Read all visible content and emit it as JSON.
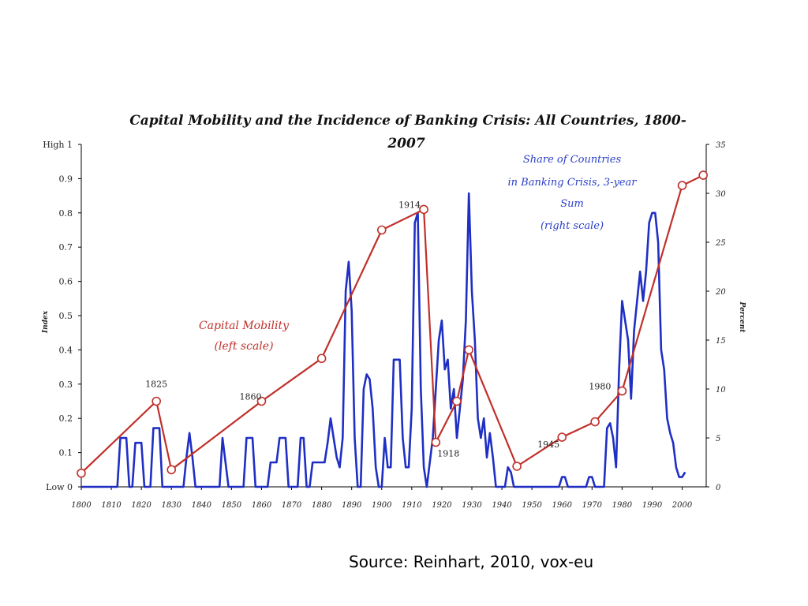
{
  "source": "Source: Reinhart, 2010, vox-eu",
  "chart_data": {
    "type": "line",
    "title_lines": [
      "Capital Mobility and the Incidence of Banking Crisis: All Countries, 1800-",
      "2007"
    ],
    "left_axis": {
      "label": "Index",
      "range": [
        0,
        1
      ],
      "ticks": [
        {
          "v": 0,
          "t": "Low 0"
        },
        {
          "v": 0.1,
          "t": "0.1"
        },
        {
          "v": 0.2,
          "t": "0.2"
        },
        {
          "v": 0.3,
          "t": "0.3"
        },
        {
          "v": 0.4,
          "t": "0.4"
        },
        {
          "v": 0.5,
          "t": "0.5"
        },
        {
          "v": 0.6,
          "t": "0.6"
        },
        {
          "v": 0.7,
          "t": "0.7"
        },
        {
          "v": 0.8,
          "t": "0.8"
        },
        {
          "v": 0.9,
          "t": "0.9"
        },
        {
          "v": 1,
          "t": "High 1"
        }
      ]
    },
    "right_axis": {
      "label": "Percent",
      "range": [
        0,
        35
      ],
      "ticks": [
        "0",
        "5",
        "10",
        "15",
        "20",
        "25",
        "30",
        "35"
      ]
    },
    "x_axis": {
      "range": [
        1800,
        2008
      ],
      "ticks": [
        {
          "v": 1800,
          "t": "1800"
        },
        {
          "v": 1810,
          "t": "1810"
        },
        {
          "v": 1820,
          "t": "1820"
        },
        {
          "v": 1830,
          "t": "1830"
        },
        {
          "v": 1840,
          "t": "1840"
        },
        {
          "v": 1850,
          "t": "1850"
        },
        {
          "v": 1860,
          "t": "1860"
        },
        {
          "v": 1870,
          "t": "1870"
        },
        {
          "v": 1880,
          "t": "1880"
        },
        {
          "v": 1890,
          "t": "1890"
        },
        {
          "v": 1900,
          "t": "1900"
        },
        {
          "v": 1910,
          "t": "1910"
        },
        {
          "v": 1920,
          "t": "1920"
        },
        {
          "v": 1930,
          "t": "1930"
        },
        {
          "v": 1940,
          "t": "1940"
        },
        {
          "v": 1950,
          "t": "1950"
        },
        {
          "v": 1960,
          "t": "1960"
        },
        {
          "v": 1970,
          "t": "1970"
        },
        {
          "v": 1980,
          "t": "1980"
        },
        {
          "v": 1990,
          "t": "1990"
        },
        {
          "v": 2000,
          "t": "2000"
        }
      ]
    },
    "series": [
      {
        "name": "Capital Mobility",
        "axis": "left",
        "color": "#c0302a",
        "marker": "circle",
        "points": [
          [
            1800,
            0.04
          ],
          [
            1825,
            0.25
          ],
          [
            1830,
            0.05
          ],
          [
            1860,
            0.25
          ],
          [
            1880,
            0.375
          ],
          [
            1900,
            0.75
          ],
          [
            1914,
            0.81
          ],
          [
            1918,
            0.13
          ],
          [
            1925,
            0.25
          ],
          [
            1929,
            0.4
          ],
          [
            1945,
            0.06
          ],
          [
            1960,
            0.145
          ],
          [
            1971,
            0.19
          ],
          [
            1980,
            0.28
          ],
          [
            2000,
            0.88
          ],
          [
            2007,
            0.91
          ]
        ]
      },
      {
        "name": "Share of Countries in Banking Crisis, 3-year Sum",
        "axis": "right",
        "color": "#1f2fc4",
        "points": [
          [
            1800,
            0
          ],
          [
            1812,
            0
          ],
          [
            1813,
            5
          ],
          [
            1815,
            5
          ],
          [
            1816,
            0
          ],
          [
            1817,
            0
          ],
          [
            1818,
            4.5
          ],
          [
            1820,
            4.5
          ],
          [
            1821,
            0
          ],
          [
            1823,
            0
          ],
          [
            1824,
            6
          ],
          [
            1826,
            6
          ],
          [
            1827,
            0
          ],
          [
            1834,
            0
          ],
          [
            1835,
            3
          ],
          [
            1836,
            5.5
          ],
          [
            1837,
            3
          ],
          [
            1838,
            0
          ],
          [
            1846,
            0
          ],
          [
            1847,
            5
          ],
          [
            1849,
            0
          ],
          [
            1854,
            0
          ],
          [
            1855,
            5
          ],
          [
            1857,
            5
          ],
          [
            1858,
            0
          ],
          [
            1862,
            0
          ],
          [
            1863,
            2.5
          ],
          [
            1865,
            2.5
          ],
          [
            1866,
            5
          ],
          [
            1868,
            5
          ],
          [
            1869,
            0
          ],
          [
            1872,
            0
          ],
          [
            1873,
            5
          ],
          [
            1874,
            5
          ],
          [
            1875,
            0
          ],
          [
            1876,
            0
          ],
          [
            1877,
            2.5
          ],
          [
            1881,
            2.5
          ],
          [
            1882,
            4.5
          ],
          [
            1883,
            7
          ],
          [
            1884,
            5
          ],
          [
            1885,
            3
          ],
          [
            1886,
            2
          ],
          [
            1887,
            5
          ],
          [
            1888,
            20
          ],
          [
            1889,
            23
          ],
          [
            1890,
            18
          ],
          [
            1891,
            5
          ],
          [
            1892,
            0
          ],
          [
            1893,
            0
          ],
          [
            1894,
            10
          ],
          [
            1895,
            11.5
          ],
          [
            1896,
            11
          ],
          [
            1897,
            8
          ],
          [
            1898,
            2
          ],
          [
            1899,
            0
          ],
          [
            1900,
            0
          ],
          [
            1901,
            5
          ],
          [
            1902,
            2
          ],
          [
            1903,
            2
          ],
          [
            1904,
            13
          ],
          [
            1906,
            13
          ],
          [
            1907,
            5
          ],
          [
            1908,
            2
          ],
          [
            1909,
            2
          ],
          [
            1910,
            8
          ],
          [
            1911,
            27
          ],
          [
            1912,
            28
          ],
          [
            1913,
            10
          ],
          [
            1914,
            2
          ],
          [
            1915,
            0
          ],
          [
            1917,
            5
          ],
          [
            1918,
            10
          ],
          [
            1919,
            15
          ],
          [
            1920,
            17
          ],
          [
            1921,
            12
          ],
          [
            1922,
            13
          ],
          [
            1923,
            8
          ],
          [
            1924,
            10
          ],
          [
            1925,
            5
          ],
          [
            1926,
            8
          ],
          [
            1927,
            11
          ],
          [
            1928,
            17
          ],
          [
            1929,
            30
          ],
          [
            1930,
            20
          ],
          [
            1931,
            15
          ],
          [
            1932,
            7
          ],
          [
            1933,
            5
          ],
          [
            1934,
            7
          ],
          [
            1935,
            3
          ],
          [
            1936,
            5.5
          ],
          [
            1937,
            3
          ],
          [
            1938,
            0
          ],
          [
            1941,
            0
          ],
          [
            1942,
            2
          ],
          [
            1943,
            1.5
          ],
          [
            1944,
            0
          ],
          [
            1959,
            0
          ],
          [
            1960,
            1
          ],
          [
            1961,
            1
          ],
          [
            1962,
            0
          ],
          [
            1968,
            0
          ],
          [
            1969,
            1
          ],
          [
            1970,
            1
          ],
          [
            1971,
            0
          ],
          [
            1974,
            0
          ],
          [
            1975,
            6
          ],
          [
            1976,
            6.5
          ],
          [
            1977,
            5
          ],
          [
            1978,
            2
          ],
          [
            1979,
            12
          ],
          [
            1980,
            19
          ],
          [
            1981,
            17
          ],
          [
            1982,
            15
          ],
          [
            1983,
            9
          ],
          [
            1984,
            16
          ],
          [
            1985,
            19
          ],
          [
            1986,
            22
          ],
          [
            1987,
            19
          ],
          [
            1988,
            22
          ],
          [
            1989,
            27
          ],
          [
            1990,
            28
          ],
          [
            1991,
            28
          ],
          [
            1992,
            25
          ],
          [
            1993,
            14
          ],
          [
            1994,
            12
          ],
          [
            1995,
            7
          ],
          [
            1996,
            5.5
          ],
          [
            1997,
            4.5
          ],
          [
            1998,
            2
          ],
          [
            1999,
            1
          ],
          [
            2000,
            1
          ],
          [
            2001,
            1.5
          ]
        ]
      }
    ],
    "annotations": {
      "capital_mobility_lines": [
        "Capital Mobility",
        "(left scale)"
      ],
      "share_lines": [
        "Share of Countries",
        "in Banking Crisis, 3-year",
        "Sum",
        "(right scale)"
      ],
      "year_labels": [
        {
          "text": "1825",
          "x": 1825,
          "v": 0.25,
          "dy": -18
        },
        {
          "text": "1860",
          "x": 1860,
          "v": 0.25,
          "dy": -2,
          "dx": -14
        },
        {
          "text": "1914",
          "x": 1914,
          "v": 0.81,
          "dy": -2,
          "dx": -18
        },
        {
          "text": "1918",
          "x": 1918,
          "v": 0.13,
          "dy": 18,
          "dx": 16
        },
        {
          "text": "1945",
          "x": 1945,
          "v": 0.06,
          "dy": -24,
          "dx": 40
        },
        {
          "text": "1980",
          "x": 1980,
          "v": 0.28,
          "dy": -2,
          "dx": -28
        }
      ]
    },
    "grid": false
  }
}
